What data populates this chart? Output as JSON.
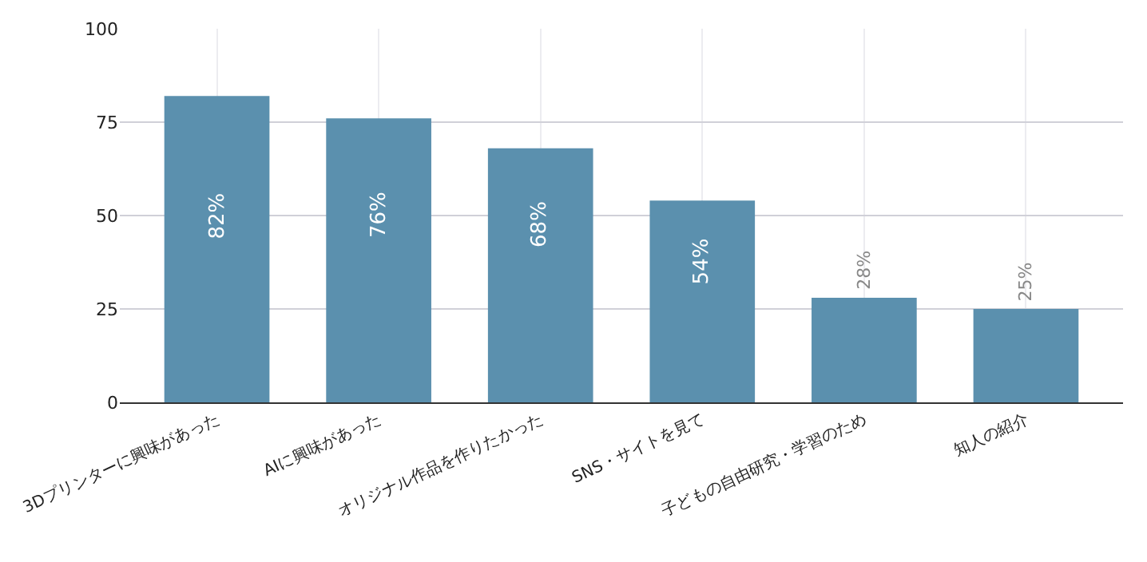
{
  "chart_data": {
    "type": "bar",
    "categories": [
      "3Dプリンターに興味があった",
      "AIに興味があった",
      "オリジナル作品を作りたかった",
      "SNS・サイトを見て",
      "子どもの自由研究・学習のため",
      "知人の紹介"
    ],
    "values": [
      82,
      76,
      68,
      54,
      28,
      25
    ],
    "color": "#5b90ae",
    "value_labels": [
      "82%",
      "76%",
      "68%",
      "54%",
      "28%",
      "25%"
    ],
    "ylim": [
      0,
      100
    ],
    "yticks": [
      0,
      25,
      50,
      75,
      100
    ],
    "grid": true
  }
}
